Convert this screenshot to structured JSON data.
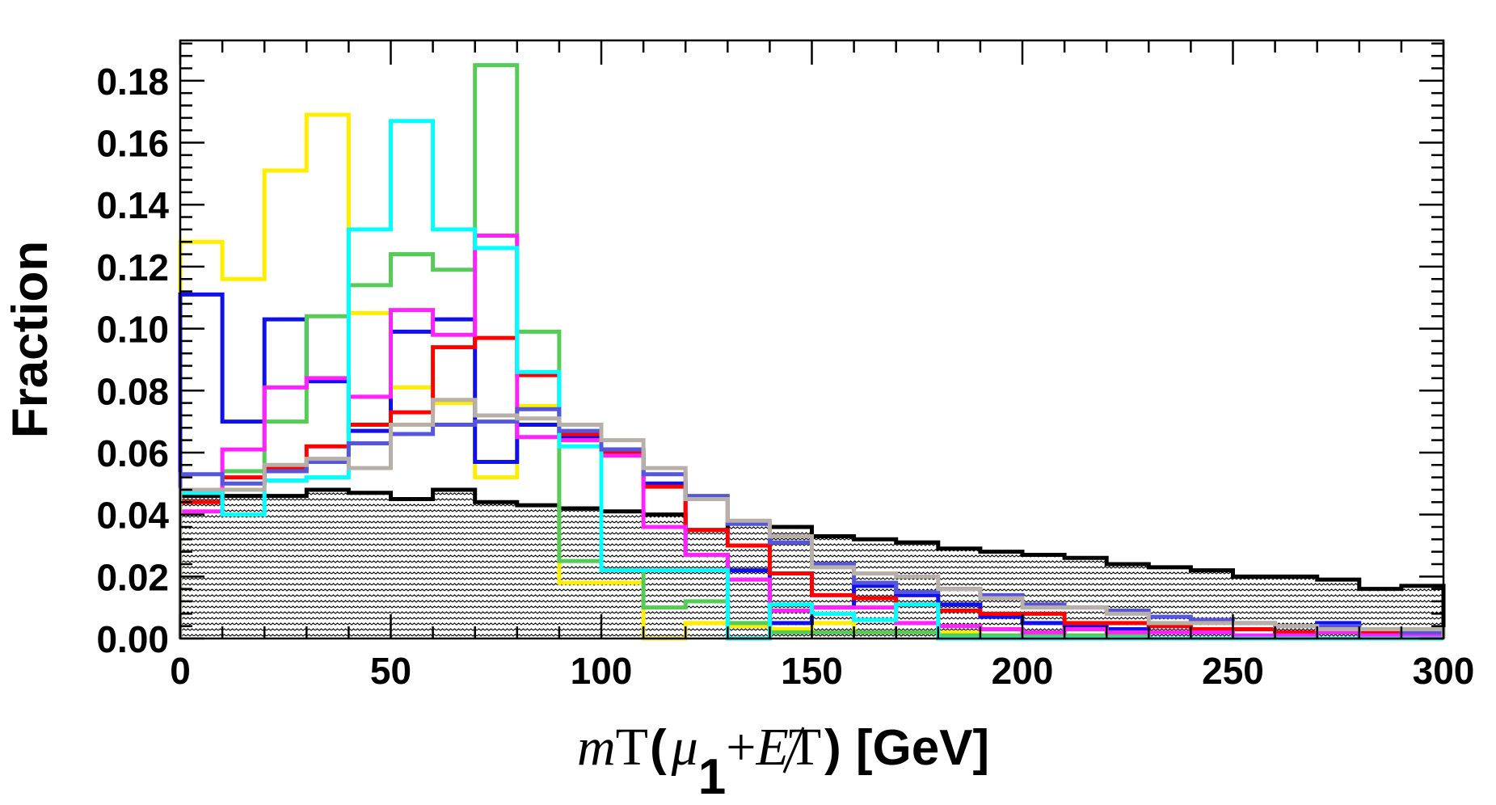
{
  "chart_data": {
    "type": "histogram",
    "title": "",
    "ylabel": "Fraction",
    "xlabel": {
      "var": "m",
      "var_sub": "T",
      "open": "(",
      "mu": "μ",
      "mu_sub": "1",
      "plus": "+",
      "met": "E",
      "met_sub": "T",
      "close": ")",
      "unit": "[GeV]"
    },
    "xlim": [
      0,
      300
    ],
    "ylim": [
      0,
      0.193
    ],
    "bin_edges": [
      0,
      10,
      20,
      30,
      40,
      50,
      60,
      70,
      80,
      90,
      100,
      110,
      120,
      130,
      140,
      150,
      160,
      170,
      180,
      190,
      200,
      210,
      220,
      230,
      240,
      250,
      260,
      270,
      280,
      290,
      300
    ],
    "x_ticks": [
      0,
      50,
      100,
      150,
      200,
      250,
      300
    ],
    "x_tick_labels": [
      "0",
      "50",
      "100",
      "150",
      "200",
      "250",
      "300"
    ],
    "y_ticks": [
      0,
      0.02,
      0.04,
      0.06,
      0.08,
      0.1,
      0.12,
      0.14,
      0.16,
      0.18
    ],
    "y_tick_labels": [
      "0.00",
      "0.02",
      "0.04",
      "0.06",
      "0.08",
      "0.10",
      "0.12",
      "0.14",
      "0.16",
      "0.18"
    ],
    "background": {
      "name": "background",
      "color": "#000000",
      "fill": "hatched",
      "values": [
        0.046,
        0.046,
        0.046,
        0.048,
        0.047,
        0.045,
        0.048,
        0.044,
        0.043,
        0.042,
        0.041,
        0.04,
        0.035,
        0.037,
        0.036,
        0.033,
        0.032,
        0.031,
        0.029,
        0.028,
        0.027,
        0.026,
        0.024,
        0.023,
        0.022,
        0.02,
        0.02,
        0.019,
        0.016,
        0.017
      ]
    },
    "series": [
      {
        "name": "yellow",
        "color": "#ffee00",
        "values": [
          0.128,
          0.116,
          0.151,
          0.169,
          0.105,
          0.081,
          0.076,
          0.052,
          0.075,
          0.018,
          0.018,
          0.0,
          0.005,
          0.004,
          0.003,
          0.005,
          0.002,
          0.002,
          0.002,
          0.001,
          0.001,
          0.001,
          0.001,
          0.0,
          0.0,
          0.0,
          0.0,
          0.0,
          0.0,
          0.0
        ]
      },
      {
        "name": "blue",
        "color": "#1010ee",
        "values": [
          0.111,
          0.07,
          0.103,
          0.083,
          0.067,
          0.099,
          0.103,
          0.057,
          0.069,
          0.065,
          0.061,
          0.05,
          0.027,
          0.022,
          0.005,
          0.01,
          0.017,
          0.014,
          0.011,
          0.007,
          0.005,
          0.004,
          0.003,
          0.004,
          0.002,
          0.003,
          0.002,
          0.005,
          0.003,
          0.002
        ]
      },
      {
        "name": "green",
        "color": "#55cc55",
        "values": [
          0.047,
          0.054,
          0.07,
          0.104,
          0.114,
          0.124,
          0.119,
          0.185,
          0.099,
          0.025,
          0.022,
          0.01,
          0.012,
          0.005,
          0.002,
          0.002,
          0.002,
          0.002,
          0.001,
          0.001,
          0.001,
          0.001,
          0.001,
          0.0,
          0.0,
          0.0,
          0.0,
          0.0,
          0.0,
          0.0
        ]
      },
      {
        "name": "red",
        "color": "#ff0000",
        "values": [
          0.044,
          0.052,
          0.055,
          0.062,
          0.069,
          0.073,
          0.094,
          0.097,
          0.085,
          0.066,
          0.06,
          0.049,
          0.035,
          0.03,
          0.021,
          0.014,
          0.013,
          0.011,
          0.009,
          0.008,
          0.008,
          0.005,
          0.005,
          0.004,
          0.003,
          0.003,
          0.002,
          0.002,
          0.002,
          0.002
        ]
      },
      {
        "name": "magenta",
        "color": "#ff22ff",
        "values": [
          0.041,
          0.061,
          0.081,
          0.084,
          0.078,
          0.106,
          0.098,
          0.13,
          0.065,
          0.064,
          0.059,
          0.036,
          0.027,
          0.019,
          0.009,
          0.01,
          0.01,
          0.005,
          0.004,
          0.003,
          0.002,
          0.003,
          0.002,
          0.002,
          0.002,
          0.001,
          0.001,
          0.002,
          0.001,
          0.001
        ]
      },
      {
        "name": "cyan",
        "color": "#00ffff",
        "values": [
          0.047,
          0.04,
          0.051,
          0.052,
          0.132,
          0.167,
          0.132,
          0.126,
          0.086,
          0.062,
          0.022,
          0.022,
          0.022,
          0.0,
          0.011,
          0.008,
          0.006,
          0.011,
          0.0,
          0.0,
          0.0,
          0.0,
          0.0,
          0.0,
          0.0,
          0.0,
          0.0,
          0.0,
          0.0,
          0.0
        ]
      },
      {
        "name": "slate-blue",
        "color": "#5555dd",
        "values": [
          0.053,
          0.05,
          0.054,
          0.057,
          0.063,
          0.066,
          0.069,
          0.07,
          0.074,
          0.067,
          0.061,
          0.053,
          0.046,
          0.037,
          0.031,
          0.024,
          0.018,
          0.015,
          0.016,
          0.014,
          0.011,
          0.01,
          0.009,
          0.007,
          0.006,
          0.005,
          0.004,
          0.004,
          0.003,
          0.002
        ]
      },
      {
        "name": "grey",
        "color": "#b8b0a8",
        "values": [
          0.048,
          0.048,
          0.056,
          0.058,
          0.055,
          0.069,
          0.077,
          0.072,
          0.071,
          0.069,
          0.064,
          0.055,
          0.045,
          0.038,
          0.033,
          0.023,
          0.021,
          0.02,
          0.016,
          0.013,
          0.01,
          0.01,
          0.008,
          0.005,
          0.005,
          0.005,
          0.004,
          0.003,
          0.003,
          0.003
        ]
      }
    ]
  }
}
